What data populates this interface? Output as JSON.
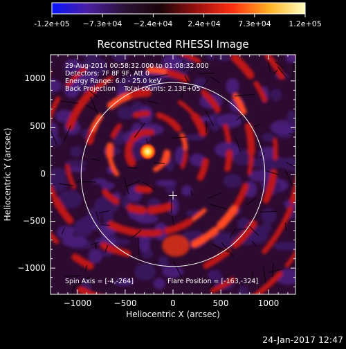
{
  "colorbar": {
    "tick_labels": [
      "-1.2e+05",
      "−7.3e+04",
      "−2.4e+04",
      "2.4e+04",
      "7.3e+04",
      "1.2e+05"
    ],
    "min": -120000,
    "max": 120000,
    "colors": [
      "#0a14ff",
      "#4a1fa0",
      "#2a1236",
      "#1a0508",
      "#9a1010",
      "#ff3010",
      "#ffb020",
      "#ffffc0"
    ]
  },
  "plot": {
    "title": "Reconstructed RHESSI Image",
    "xlabel": "Heliocentric X (arcsec)",
    "ylabel": "Heliocentric Y (arcsec)",
    "x_ticks": [
      "−1000",
      "−500",
      "0",
      "500",
      "1000"
    ],
    "y_ticks": [
      "1000",
      "500",
      "0",
      "−500",
      "−1000"
    ],
    "x_range": [
      -1280,
      1280
    ],
    "y_range": [
      -1280,
      1280
    ],
    "info_lines": [
      "29-Aug-2014 00:58:32.000 to 01:08:32.000",
      "Detectors: 7F 8F 9F, Att 0",
      "Energy Range: 6.0 - 25.0 keV",
      "Back Projection    Total counts: 2.13E+05"
    ],
    "spin_axis": "Spin Axis = [-4,-264]",
    "flare_position": "Flare Position = [-163,-324]",
    "solar_disk_radius_arcsec": 960,
    "sun_center": [
      0,
      0
    ],
    "bright_source": [
      -265,
      245
    ],
    "center_marker": [
      0,
      -225
    ]
  },
  "timestamp": "24-Jan-2017 12:47"
}
